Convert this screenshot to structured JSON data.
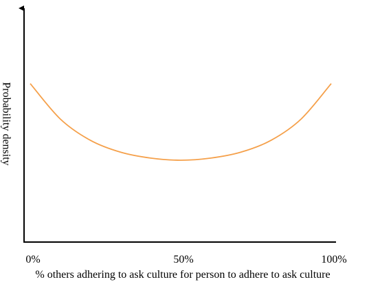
{
  "chart_data": {
    "type": "line",
    "x_label": "% others adhering to ask culture for person to adhere to ask culture",
    "y_label": "Probability density",
    "x": [
      0,
      10,
      20,
      30,
      40,
      50,
      60,
      70,
      80,
      90,
      100
    ],
    "series": [
      {
        "color": "#f5a04a",
        "values": [
          0.67,
          0.52,
          0.43,
          0.38,
          0.355,
          0.346,
          0.355,
          0.38,
          0.43,
          0.52,
          0.67
        ]
      }
    ],
    "xlim": [
      0,
      100
    ],
    "ylim": [
      0,
      1
    ],
    "xticks": [
      {
        "value": 0,
        "label": "0%"
      },
      {
        "value": 50,
        "label": "50%"
      },
      {
        "value": 100,
        "label": "100%"
      }
    ]
  }
}
